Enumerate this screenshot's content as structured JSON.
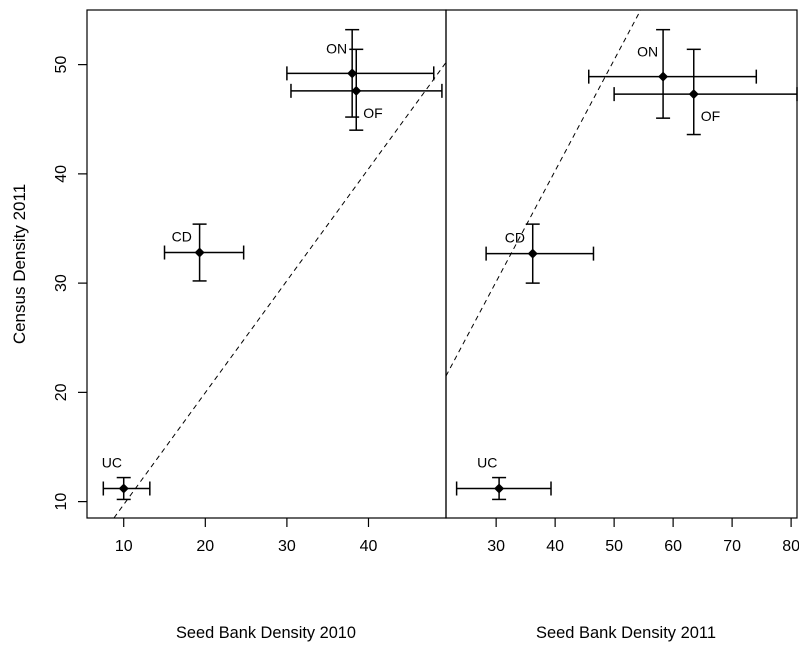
{
  "chart_data": [
    {
      "type": "scatter",
      "title": "",
      "xlabel": "Seed Bank Density  2010",
      "ylabel": "Census Density  2011",
      "xlim": [
        5.5,
        49.5
      ],
      "ylim": [
        8.5,
        55
      ],
      "x_ticks": [
        10,
        20,
        30,
        40
      ],
      "y_ticks": [
        10,
        20,
        30,
        40,
        50
      ],
      "grid": false,
      "points": [
        {
          "label": "ON",
          "x": 38.0,
          "y": 49.2,
          "xerr": [
            30.0,
            48.0
          ],
          "yerr": [
            45.2,
            53.2
          ]
        },
        {
          "label": "OF",
          "x": 38.5,
          "y": 47.6,
          "xerr": [
            30.5,
            49.0
          ],
          "yerr": [
            44.0,
            51.4
          ]
        },
        {
          "label": "CD",
          "x": 19.3,
          "y": 32.8,
          "xerr": [
            15.0,
            24.7
          ],
          "yerr": [
            30.2,
            35.4
          ]
        },
        {
          "label": "UC",
          "x": 10.0,
          "y": 11.2,
          "xerr": [
            7.5,
            13.2
          ],
          "yerr": [
            10.2,
            12.2
          ]
        }
      ],
      "fit_line": {
        "x": [
          8.8,
          49.5
        ],
        "y": [
          8.5,
          50.2
        ],
        "style": "dashed"
      }
    },
    {
      "type": "scatter",
      "title": "",
      "xlabel": "Seed Bank Density  2011",
      "ylabel": "",
      "xlim": [
        21.5,
        81.0
      ],
      "ylim": [
        8.5,
        55
      ],
      "x_ticks": [
        30,
        40,
        50,
        60,
        70,
        80
      ],
      "grid": false,
      "points": [
        {
          "label": "ON",
          "x": 58.3,
          "y": 48.9,
          "xerr": [
            45.7,
            74.1
          ],
          "yerr": [
            45.1,
            53.2
          ]
        },
        {
          "label": "OF",
          "x": 63.5,
          "y": 47.3,
          "xerr": [
            50.0,
            81.0
          ],
          "yerr": [
            43.6,
            51.4
          ]
        },
        {
          "label": "CD",
          "x": 36.2,
          "y": 32.7,
          "xerr": [
            28.3,
            46.5
          ],
          "yerr": [
            30.0,
            35.4
          ]
        },
        {
          "label": "UC",
          "x": 30.5,
          "y": 11.2,
          "xerr": [
            23.3,
            39.3
          ],
          "yerr": [
            10.2,
            12.2
          ]
        }
      ],
      "fit_line": {
        "x": [
          21.5,
          54.5
        ],
        "y": [
          21.5,
          55.0
        ],
        "style": "dashed"
      }
    }
  ]
}
